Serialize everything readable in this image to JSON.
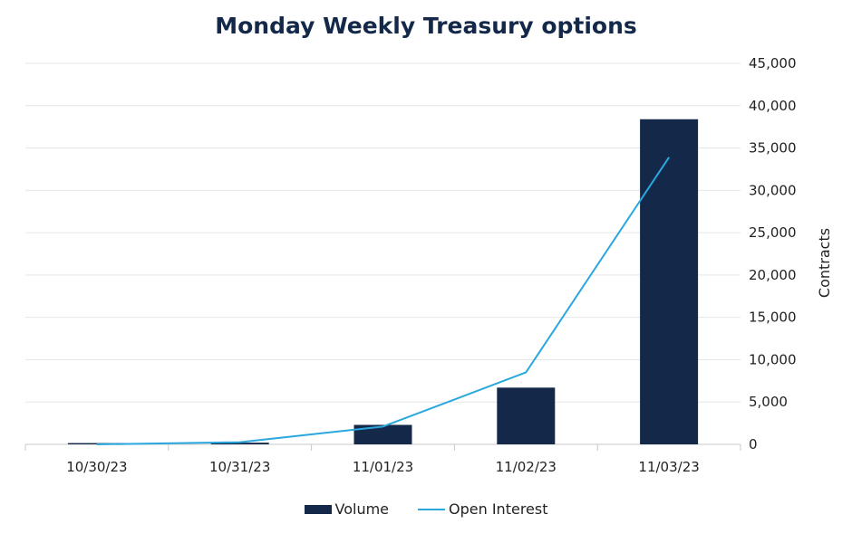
{
  "chart_data": {
    "type": "bar+line",
    "title": "Monday Weekly Treasury options",
    "ylabel": "Contracts",
    "categories": [
      "10/30/23",
      "10/31/23",
      "11/01/23",
      "11/02/23",
      "11/03/23"
    ],
    "ylim": [
      0,
      45000
    ],
    "yticks": [
      0,
      5000,
      10000,
      15000,
      20000,
      25000,
      30000,
      35000,
      40000,
      45000
    ],
    "ytick_labels": [
      "0",
      "5,000",
      "10,000",
      "15,000",
      "20,000",
      "25,000",
      "30,000",
      "35,000",
      "40,000",
      "45,000"
    ],
    "y_axis_side": "right",
    "grid": true,
    "legend_position": "bottom",
    "series": [
      {
        "name": "Volume",
        "type": "bar",
        "color": "#14294a",
        "values": [
          150,
          200,
          2300,
          6700,
          38400
        ]
      },
      {
        "name": "Open Interest",
        "type": "line",
        "color": "#2aa8de",
        "values": [
          0,
          250,
          2100,
          8500,
          33900
        ]
      }
    ]
  }
}
